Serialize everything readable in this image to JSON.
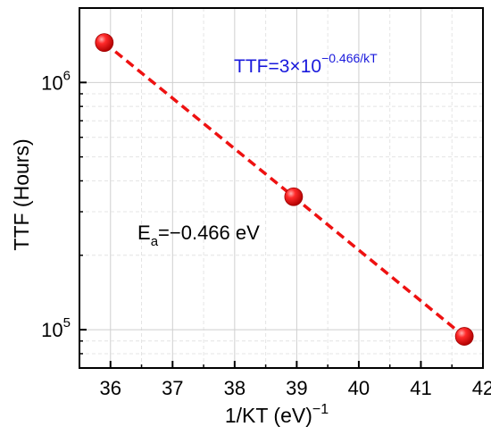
{
  "chart_data": {
    "type": "scatter",
    "xlabel": "1/KT (eV)",
    "xlabel_sup": "−1",
    "ylabel": "TTF (Hours)",
    "x_scale": "linear",
    "y_scale": "log",
    "xlim": [
      35.5,
      42
    ],
    "ylim": [
      70000,
      2000000
    ],
    "x_ticks": [
      36,
      37,
      38,
      39,
      40,
      41,
      42
    ],
    "x_tick_labels": [
      "36",
      "37",
      "38",
      "39",
      "40",
      "41",
      "42"
    ],
    "y_ticks": [
      100000,
      1000000
    ],
    "y_tick_labels": [
      {
        "base": "10",
        "exp": "5"
      },
      {
        "base": "10",
        "exp": "6"
      }
    ],
    "grid": true,
    "series": [
      {
        "points": [
          {
            "x": 35.9,
            "y": 1450000
          },
          {
            "x": 38.95,
            "y": 345000
          },
          {
            "x": 41.7,
            "y": 94000
          }
        ],
        "marker_color": "#e00000",
        "line_color": "#ee1111",
        "line_style": "dashed"
      }
    ],
    "annotations": {
      "equation": {
        "prefix": "TTF=3×10",
        "exp": "−0.466/kT",
        "color": "#1a1adc"
      },
      "activation_energy": {
        "main": "E",
        "sub": "a",
        "rest": "=−0.466 eV",
        "color": "#000000"
      }
    }
  }
}
